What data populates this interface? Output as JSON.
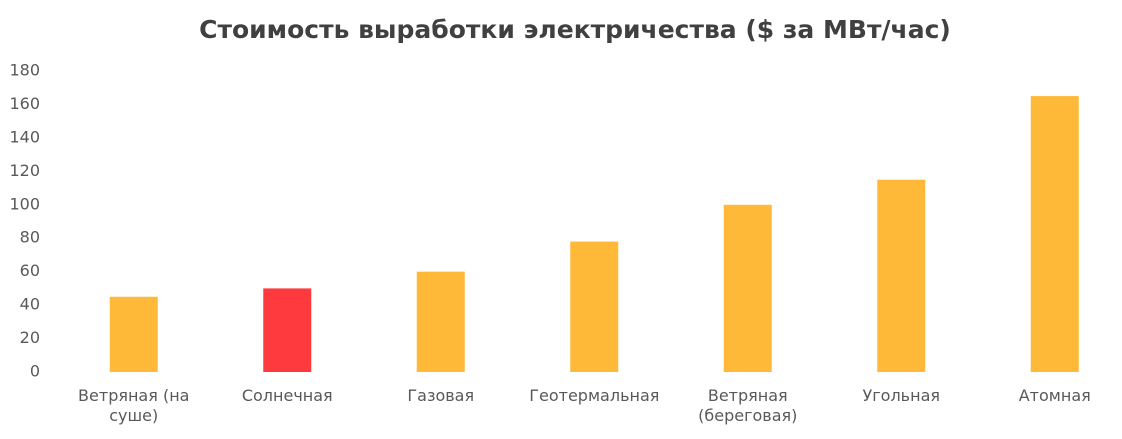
{
  "chart_data": {
    "type": "bar",
    "title": "Стоимость выработки электричества ($ за МВт/час)",
    "categories": [
      "Ветряная (на суше)",
      "Солнечная",
      "Газовая",
      "Геотермальная",
      "Ветряная (береговая)",
      "Угольная",
      "Атомная"
    ],
    "values": [
      45,
      50,
      60,
      78,
      100,
      115,
      165
    ],
    "colors": [
      "#ffb939",
      "#ff3a3e",
      "#ffb939",
      "#ffb939",
      "#ffb939",
      "#ffb939",
      "#ffb939"
    ],
    "ylim": [
      0,
      180
    ],
    "yticks": [
      0,
      20,
      40,
      60,
      80,
      100,
      120,
      140,
      160,
      180
    ],
    "grid": false
  }
}
